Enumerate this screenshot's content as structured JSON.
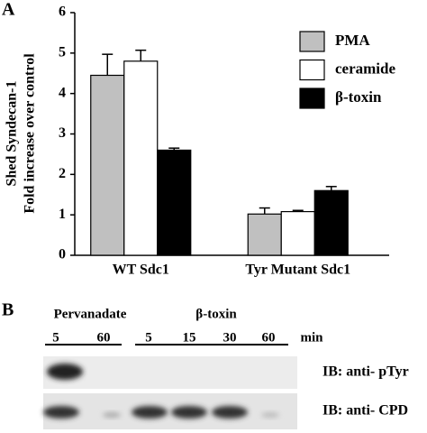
{
  "chart_data": {
    "type": "bar",
    "panel_label": "A",
    "ylabel": [
      "Shed Syndecan-1",
      "Fold increase over control"
    ],
    "categories": [
      "WT Sdc1",
      "Tyr Mutant Sdc1"
    ],
    "series": [
      {
        "name": "PMA",
        "color": "#c0c0c0",
        "values": [
          4.45,
          1.02
        ],
        "errors": [
          0.52,
          0.15
        ]
      },
      {
        "name": "ceramide",
        "color": "#ffffff",
        "values": [
          4.8,
          1.08
        ],
        "errors": [
          0.27,
          0.03
        ]
      },
      {
        "name": "β-toxin",
        "color": "#000000",
        "values": [
          2.6,
          1.6
        ],
        "errors": [
          0.05,
          0.1
        ]
      }
    ],
    "ylim": [
      0,
      6
    ],
    "yticks": [
      0,
      1,
      2,
      3,
      4,
      5,
      6
    ],
    "grid": false,
    "legend": "upper right"
  },
  "panel_b": {
    "label": "B",
    "groups": [
      {
        "label": "Pervanadate",
        "lanes": [
          "5",
          "60"
        ]
      },
      {
        "label": "β-toxin",
        "lanes": [
          "5",
          "15",
          "30",
          "60"
        ]
      }
    ],
    "unit": "min",
    "rows": [
      "IB: anti- pTyr",
      "IB: anti- CPD"
    ]
  }
}
